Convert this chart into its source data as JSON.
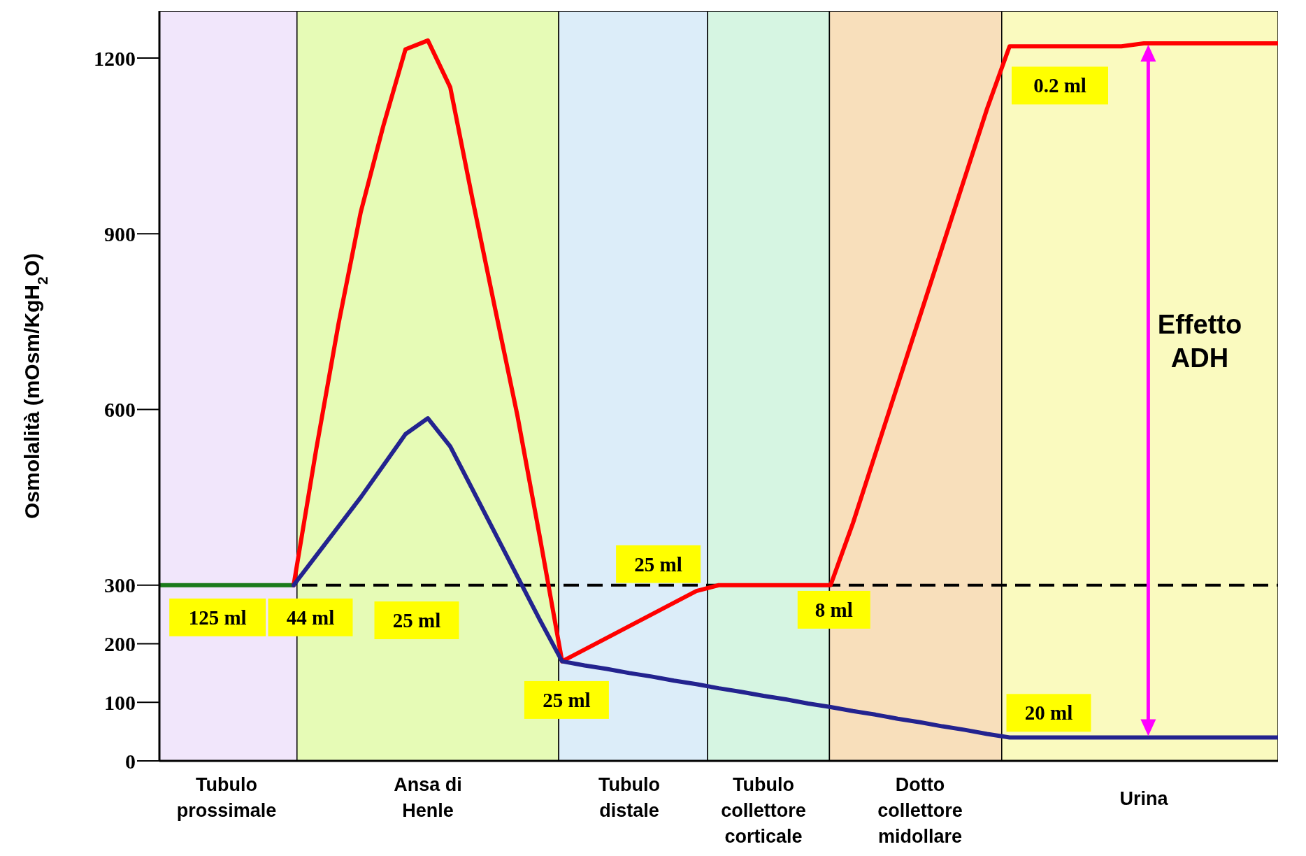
{
  "chart_data": {
    "type": "line",
    "ylabel": "Osmolalità (mOsm/KgH$_{2}$O)",
    "ylim": [
      0,
      1280
    ],
    "yticks": [
      0,
      100,
      200,
      300,
      600,
      900,
      1200
    ],
    "grid": false,
    "legend": false,
    "marker": "none",
    "line_style": "solid",
    "categories": [
      null,
      null,
      null,
      "Tubulo\nprossimale",
      null,
      null,
      null,
      null,
      null,
      null,
      null,
      null,
      "Ansa di\nHenle",
      null,
      null,
      null,
      null,
      null,
      null,
      null,
      null,
      "Tubulo\ndistale",
      null,
      null,
      null,
      null,
      null,
      "Tubulo\ncollettore\ncorticale",
      null,
      null,
      null,
      null,
      null,
      null,
      "Dotto\ncollettore\nmidollare",
      null,
      null,
      null,
      null,
      null,
      null,
      null,
      null,
      null,
      "Urina",
      null,
      null,
      null,
      null,
      null,
      null
    ],
    "series": [
      {
        "color": "#1a7a1a",
        "values": [
          300,
          300,
          300,
          300,
          300,
          300,
          300,
          null,
          null,
          null,
          null,
          null,
          null,
          null,
          null,
          null,
          null,
          null,
          null,
          null,
          null,
          null,
          null,
          null,
          null,
          null,
          null,
          null,
          null,
          null,
          null,
          null,
          null,
          null,
          null,
          null,
          null,
          null,
          null,
          null,
          null,
          null,
          null,
          null,
          null,
          null,
          null,
          null,
          null,
          null,
          null
        ]
      },
      {
        "color": "#ff0000",
        "values": [
          null,
          null,
          null,
          null,
          null,
          null,
          300,
          530,
          745,
          937,
          1083,
          1215,
          1230,
          1150,
          958,
          773,
          590,
          383,
          170,
          190,
          210,
          230,
          250,
          270,
          290,
          300,
          300,
          300,
          300,
          300,
          300,
          406,
          524,
          642,
          760,
          878,
          996,
          1114,
          1220,
          1220,
          1220,
          1220,
          1220,
          1220,
          1225,
          1225,
          1225,
          1225,
          1225,
          1225,
          1225
        ]
      },
      {
        "color": "#23238f",
        "values": [
          null,
          null,
          null,
          null,
          null,
          null,
          300,
          350,
          400,
          450,
          504,
          558,
          585,
          537,
          463,
          389,
          315,
          241,
          170,
          163,
          157,
          150,
          144,
          137,
          131,
          124,
          118,
          111,
          105,
          98,
          92,
          85,
          79,
          72,
          66,
          59,
          53,
          46,
          40,
          40,
          40,
          40,
          40,
          40,
          40,
          40,
          40,
          40,
          40,
          40,
          40
        ]
      }
    ],
    "ref_lines": [
      {
        "axis": "y",
        "value": 300,
        "color": "#000000",
        "line_style": "dashed"
      }
    ],
    "annotations": [
      "125 ml",
      "44 ml",
      "25 ml",
      "25 ml",
      "25 ml",
      "8 ml",
      "0.2 ml",
      "20 ml",
      "Effetto\nADH"
    ]
  }
}
